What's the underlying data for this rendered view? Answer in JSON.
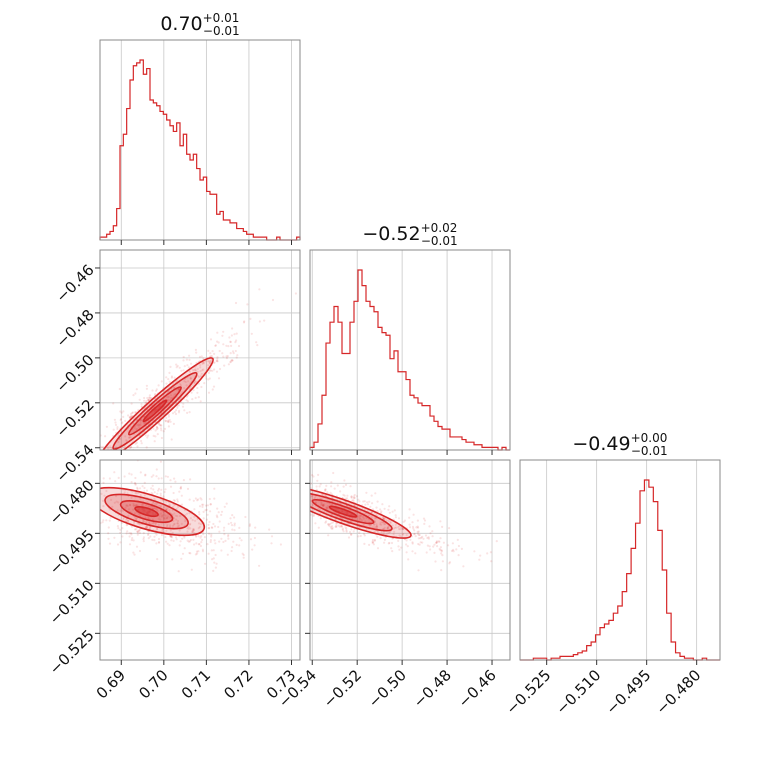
{
  "chart_data": {
    "type": "corner",
    "color": "#d62728",
    "parameters": [
      {
        "range": [
          0.685,
          0.732
        ],
        "ticks": [
          "0.69",
          "0.70",
          "0.71",
          "0.72",
          "0.73"
        ],
        "tick_values": [
          0.69,
          0.7,
          0.71,
          0.72,
          0.73
        ],
        "title_main": "0.70",
        "title_plus": "+0.01",
        "title_minus": "−0.01",
        "hist_edges_start": 0.685,
        "hist_edges_stop": 0.732,
        "hist_counts": [
          1,
          1,
          2,
          3,
          5,
          11,
          33,
          37,
          46,
          56,
          61,
          62,
          63,
          58,
          60,
          49,
          48,
          47,
          45,
          44,
          42,
          40,
          38,
          41,
          33,
          37,
          30,
          28,
          30,
          25,
          21,
          22,
          17,
          16,
          16,
          9,
          10,
          7,
          7,
          6,
          6,
          4,
          4,
          3,
          2,
          2,
          1,
          1,
          1,
          1,
          0,
          0,
          0,
          1,
          0,
          0,
          0,
          0,
          0,
          1
        ]
      },
      {
        "range": [
          -0.541,
          -0.452
        ],
        "ticks": [
          "−0.54",
          "−0.52",
          "−0.50",
          "−0.48",
          "−0.46"
        ],
        "tick_values": [
          -0.54,
          -0.52,
          -0.5,
          -0.48,
          -0.46
        ],
        "title_main": "−0.52",
        "title_plus": "+0.02",
        "title_minus": "−0.01",
        "hist_edges_start": -0.541,
        "hist_edges_stop": -0.452,
        "hist_counts": [
          1,
          3,
          10,
          21,
          41,
          49,
          55,
          49,
          37,
          37,
          49,
          57,
          69,
          63,
          57,
          55,
          53,
          47,
          45,
          44,
          35,
          38,
          30,
          30,
          27,
          21,
          20,
          18,
          17,
          17,
          13,
          11,
          9,
          8,
          8,
          5,
          5,
          5,
          4,
          3,
          3,
          2,
          2,
          1,
          1,
          1,
          1,
          0,
          1,
          0
        ]
      },
      {
        "range": [
          -0.533,
          -0.473
        ],
        "ticks": [
          "−0.525",
          "−0.510",
          "−0.495",
          "−0.480"
        ],
        "tick_values": [
          -0.525,
          -0.51,
          -0.495,
          -0.48
        ],
        "title_main": "−0.49",
        "title_plus": "+0.00",
        "title_minus": "−0.01",
        "hist_edges_start": -0.533,
        "hist_edges_stop": -0.473,
        "hist_counts": [
          0,
          0,
          0,
          1,
          1,
          1,
          0,
          1,
          1,
          2,
          2,
          2,
          3,
          4,
          5,
          8,
          10,
          14,
          18,
          20,
          22,
          26,
          30,
          38,
          48,
          62,
          76,
          94,
          100,
          96,
          88,
          72,
          50,
          26,
          10,
          4,
          2,
          1,
          1,
          0,
          0,
          1,
          0,
          0,
          0
        ]
      }
    ],
    "correlations": {
      "1_0": {
        "slope_data": 1.72,
        "center": [
          0.7,
          -0.52
        ]
      },
      "2_0": {
        "slope_data": -0.38,
        "center": [
          0.7,
          -0.49
        ]
      },
      "2_1": {
        "slope_data": -0.24,
        "center": [
          -0.52,
          -0.49
        ]
      }
    },
    "title": "",
    "grid": true
  }
}
